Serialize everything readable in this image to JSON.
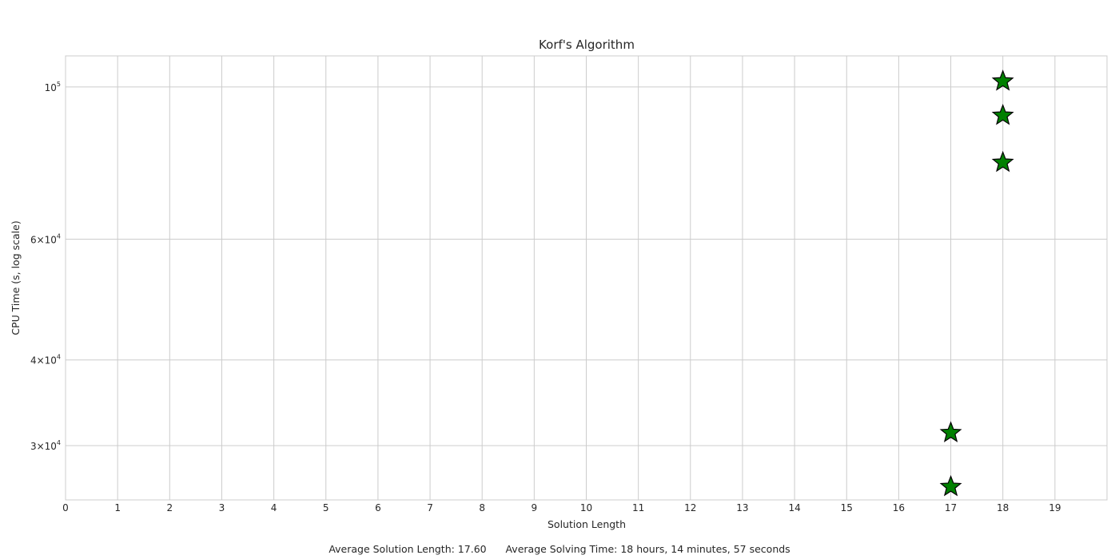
{
  "chart_data": {
    "type": "scatter",
    "title": "Korf's Algorithm",
    "xlabel": "Solution Length",
    "ylabel": "CPU Time (s, log scale)",
    "y_scale": "log",
    "xlim": [
      0,
      20
    ],
    "ylim": [
      25000,
      111000
    ],
    "x_ticks": [
      0,
      1,
      2,
      3,
      4,
      5,
      6,
      7,
      8,
      9,
      10,
      11,
      12,
      13,
      14,
      15,
      16,
      17,
      18,
      19
    ],
    "y_ticks": [
      {
        "value": 30000,
        "mantissa": "3",
        "exponent": "4"
      },
      {
        "value": 40000,
        "mantissa": "4",
        "exponent": "4"
      },
      {
        "value": 60000,
        "mantissa": "6",
        "exponent": "4"
      },
      {
        "value": 100000,
        "mantissa": "",
        "exponent": "5"
      }
    ],
    "grid": true,
    "marker": "star",
    "marker_color": "#008000",
    "marker_edge_color": "#000000",
    "points": [
      {
        "x": 17,
        "y": 26200
      },
      {
        "x": 17,
        "y": 31400
      },
      {
        "x": 18,
        "y": 77800
      },
      {
        "x": 18,
        "y": 91100
      },
      {
        "x": 18,
        "y": 102200
      }
    ],
    "footer": {
      "avg_length_label": "Average Solution Length: 17.60",
      "avg_time_label": "Average Solving Time:  18 hours, 14 minutes, 57 seconds"
    }
  }
}
